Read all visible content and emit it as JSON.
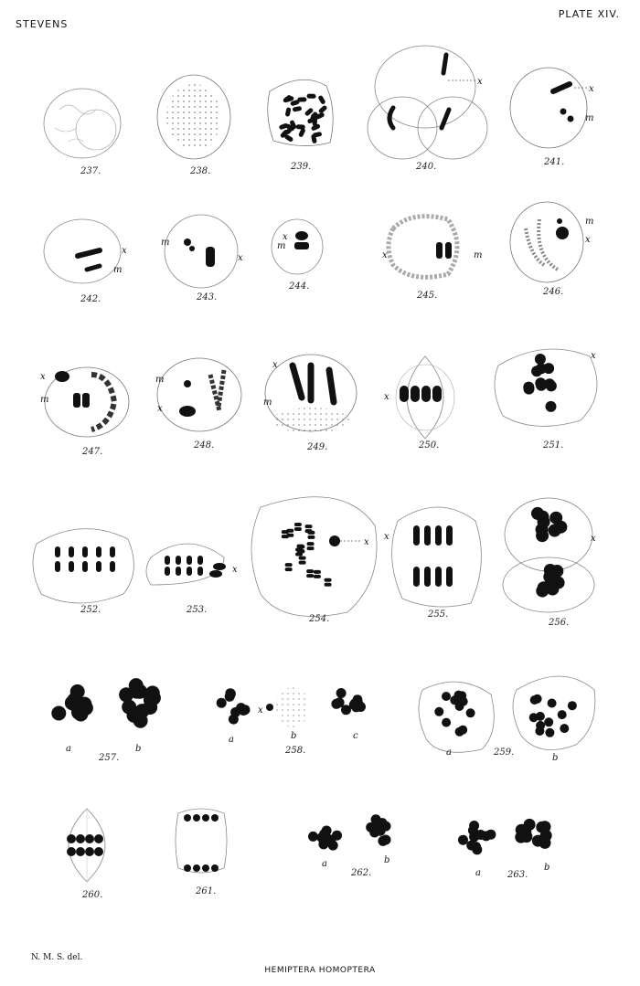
{
  "header": {
    "author": "STEVENS",
    "plate": "PLATE XIV."
  },
  "footer": {
    "credit": "N. M. S. del.",
    "title": "HEMIPTERA HOMOPTERA",
    "printer": ""
  },
  "figures": {
    "f237": "237.",
    "f238": "238.",
    "f239": "239.",
    "f240": "240.",
    "f241": "241.",
    "f242": "242.",
    "f243": "243.",
    "f244": "244.",
    "f245": "245.",
    "f246": "246.",
    "f247": "247.",
    "f248": "248.",
    "f249": "249.",
    "f250": "250.",
    "f251": "251.",
    "f252": "252.",
    "f253": "253.",
    "f254": "254.",
    "f255": "255.",
    "f256": "256.",
    "f257": "257.",
    "f258": "258.",
    "f259": "259.",
    "f260": "260.",
    "f261": "261.",
    "f262": "262.",
    "f263": "263."
  },
  "labels": {
    "x": "x",
    "m": "m",
    "a": "a",
    "b": "b",
    "c": "c"
  },
  "colors": {
    "ink": "#111111",
    "paper": "#ffffff",
    "faint": "#9a9a9a"
  }
}
